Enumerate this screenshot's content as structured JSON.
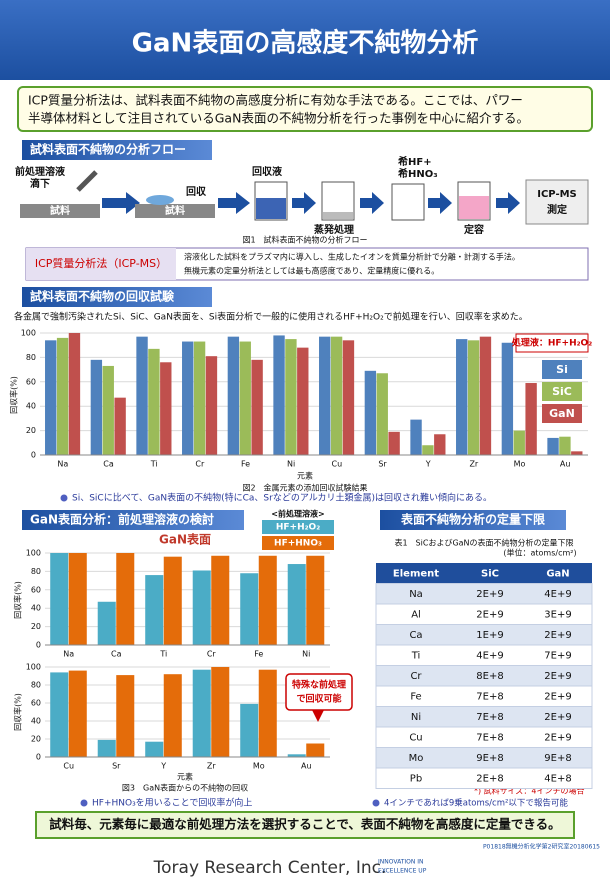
{
  "title": "GaN表面の高感度不純物分析",
  "intro": [
    "ICP質量分析法は、試料表面不純物の高感度分析に有効な手法である。ここでは、パワー",
    "半導体材料として注目されているGaN表面の不純物分析を行った事例を中心に紹介する。"
  ],
  "section1": "試料表面不純物の分析フロー",
  "flow": {
    "drop": [
      "前処理溶液",
      "滴下"
    ],
    "sample": "試料",
    "recover": "回収",
    "liquid": "回収液",
    "evaporate": "蒸発処理",
    "acid": [
      "希HF+",
      "希HNO₃"
    ],
    "volume": "定容",
    "icp": [
      "ICP-MS",
      "測定"
    ],
    "caption": "図1　試料表面不純物の分析フロー"
  },
  "icp_box": {
    "label": "ICP質量分析法（ICP-MS）",
    "text": [
      "溶液化した試料をプラズマ内に導入し、生成したイオンを質量分析計で分離・計測する手法。",
      "無機元素の定量分析法としては最も高感度であり、定量精度に優れる。"
    ]
  },
  "section2": "試料表面不純物の回収試験",
  "recovery_text": "各金属で強制汚染されたSi、SiC、GaN表面を、Si表面分析で一般的に使用されるHF+H₂O₂で前処理を行い、回収率を求めた。",
  "fig2": {
    "type": "bar",
    "categories": [
      "Na",
      "Ca",
      "Ti",
      "Cr",
      "Fe",
      "Ni",
      "Cu",
      "Sr",
      "Y",
      "Zr",
      "Mo",
      "Au"
    ],
    "series": [
      {
        "name": "Si",
        "color": "#4f81bd",
        "values": [
          94,
          78,
          97,
          93,
          97,
          98,
          97,
          69,
          29,
          95,
          92,
          14
        ]
      },
      {
        "name": "SiC",
        "color": "#9bbb59",
        "values": [
          96,
          73,
          87,
          93,
          93,
          95,
          97,
          67,
          8,
          94,
          20,
          15
        ]
      },
      {
        "name": "GaN",
        "color": "#c0504d",
        "values": [
          100,
          47,
          76,
          81,
          78,
          88,
          94,
          19,
          17,
          97,
          59,
          3
        ]
      }
    ],
    "ylim": [
      0,
      100
    ],
    "yticks": [
      0,
      20,
      40,
      60,
      80,
      100
    ],
    "ylabel": "回収率(%)",
    "xlabel": "元素",
    "annotation": "処理液：HF+H₂O₂",
    "caption": "図2　金属元素の添加回収試験結果"
  },
  "bullet1": "Si、SiCに比べて、GaN表面の不純物(特にCa、Srなどのアルカリ土類金属)は回収され難い傾向にある。",
  "section3": "GaN表面分析：前処理溶液の検討",
  "fig3": {
    "type": "bar",
    "title": "GaN表面",
    "legend_title": "<前処理溶液>",
    "series": [
      {
        "name": "HF+H₂O₂",
        "color": "#4bacc6"
      },
      {
        "name": "HF+HNO₃",
        "color": "#e46c0a"
      }
    ],
    "ylim": [
      0,
      100
    ],
    "yticks": [
      0,
      20,
      40,
      60,
      80,
      100
    ],
    "ylabel": "回収率(%)",
    "xlabel": "元素",
    "panels": [
      {
        "categories": [
          "Na",
          "Ca",
          "Ti",
          "Cr",
          "Fe",
          "Ni"
        ],
        "values": [
          [
            100,
            47,
            76,
            81,
            78,
            88
          ],
          [
            100,
            100,
            96,
            97,
            97,
            97
          ]
        ]
      },
      {
        "categories": [
          "Cu",
          "Sr",
          "Y",
          "Zr",
          "Mo",
          "Au"
        ],
        "values": [
          [
            94,
            19,
            17,
            97,
            59,
            3
          ],
          [
            96,
            91,
            92,
            100,
            97,
            15
          ]
        ]
      }
    ],
    "annotation": [
      "特殊な前処理",
      "で回収可能"
    ],
    "caption": "図3　GaN表面からの不純物の回収"
  },
  "bullet2": "HF+HNO₃を用いることで回収率が向上",
  "section4": "表面不純物分析の定量下限",
  "table": {
    "caption": "表1　SiCおよびGaNの表面不純物分析の定量下限",
    "unit": "(単位：atoms/cm²)",
    "header": [
      "Element",
      "SiC",
      "GaN"
    ],
    "rows": [
      [
        "Na",
        "2E+9",
        "4E+9"
      ],
      [
        "Al",
        "2E+9",
        "3E+9"
      ],
      [
        "Ca",
        "1E+9",
        "2E+9"
      ],
      [
        "Ti",
        "4E+9",
        "7E+9"
      ],
      [
        "Cr",
        "8E+8",
        "2E+9"
      ],
      [
        "Fe",
        "7E+8",
        "2E+9"
      ],
      [
        "Ni",
        "7E+8",
        "2E+9"
      ],
      [
        "Cu",
        "7E+8",
        "2E+9"
      ],
      [
        "Mo",
        "9E+8",
        "9E+8"
      ],
      [
        "Pb",
        "2E+8",
        "4E+8"
      ]
    ],
    "note": "*) 試料サイズ：4インチの場合"
  },
  "bullet3": "4インチであれば9乗atoms/cm²以下で報告可能",
  "conclusion": "試料毎、元素毎に最適な前処理方法を選択することで、表面不純物を高感度に定量できる。",
  "footer": {
    "code": "P01818無機分析化学第2研究室20180615",
    "company": "Toray Research Center, Inc.",
    "slogan": [
      "INNOVATION IN",
      "EXCELLENCE UP"
    ]
  }
}
